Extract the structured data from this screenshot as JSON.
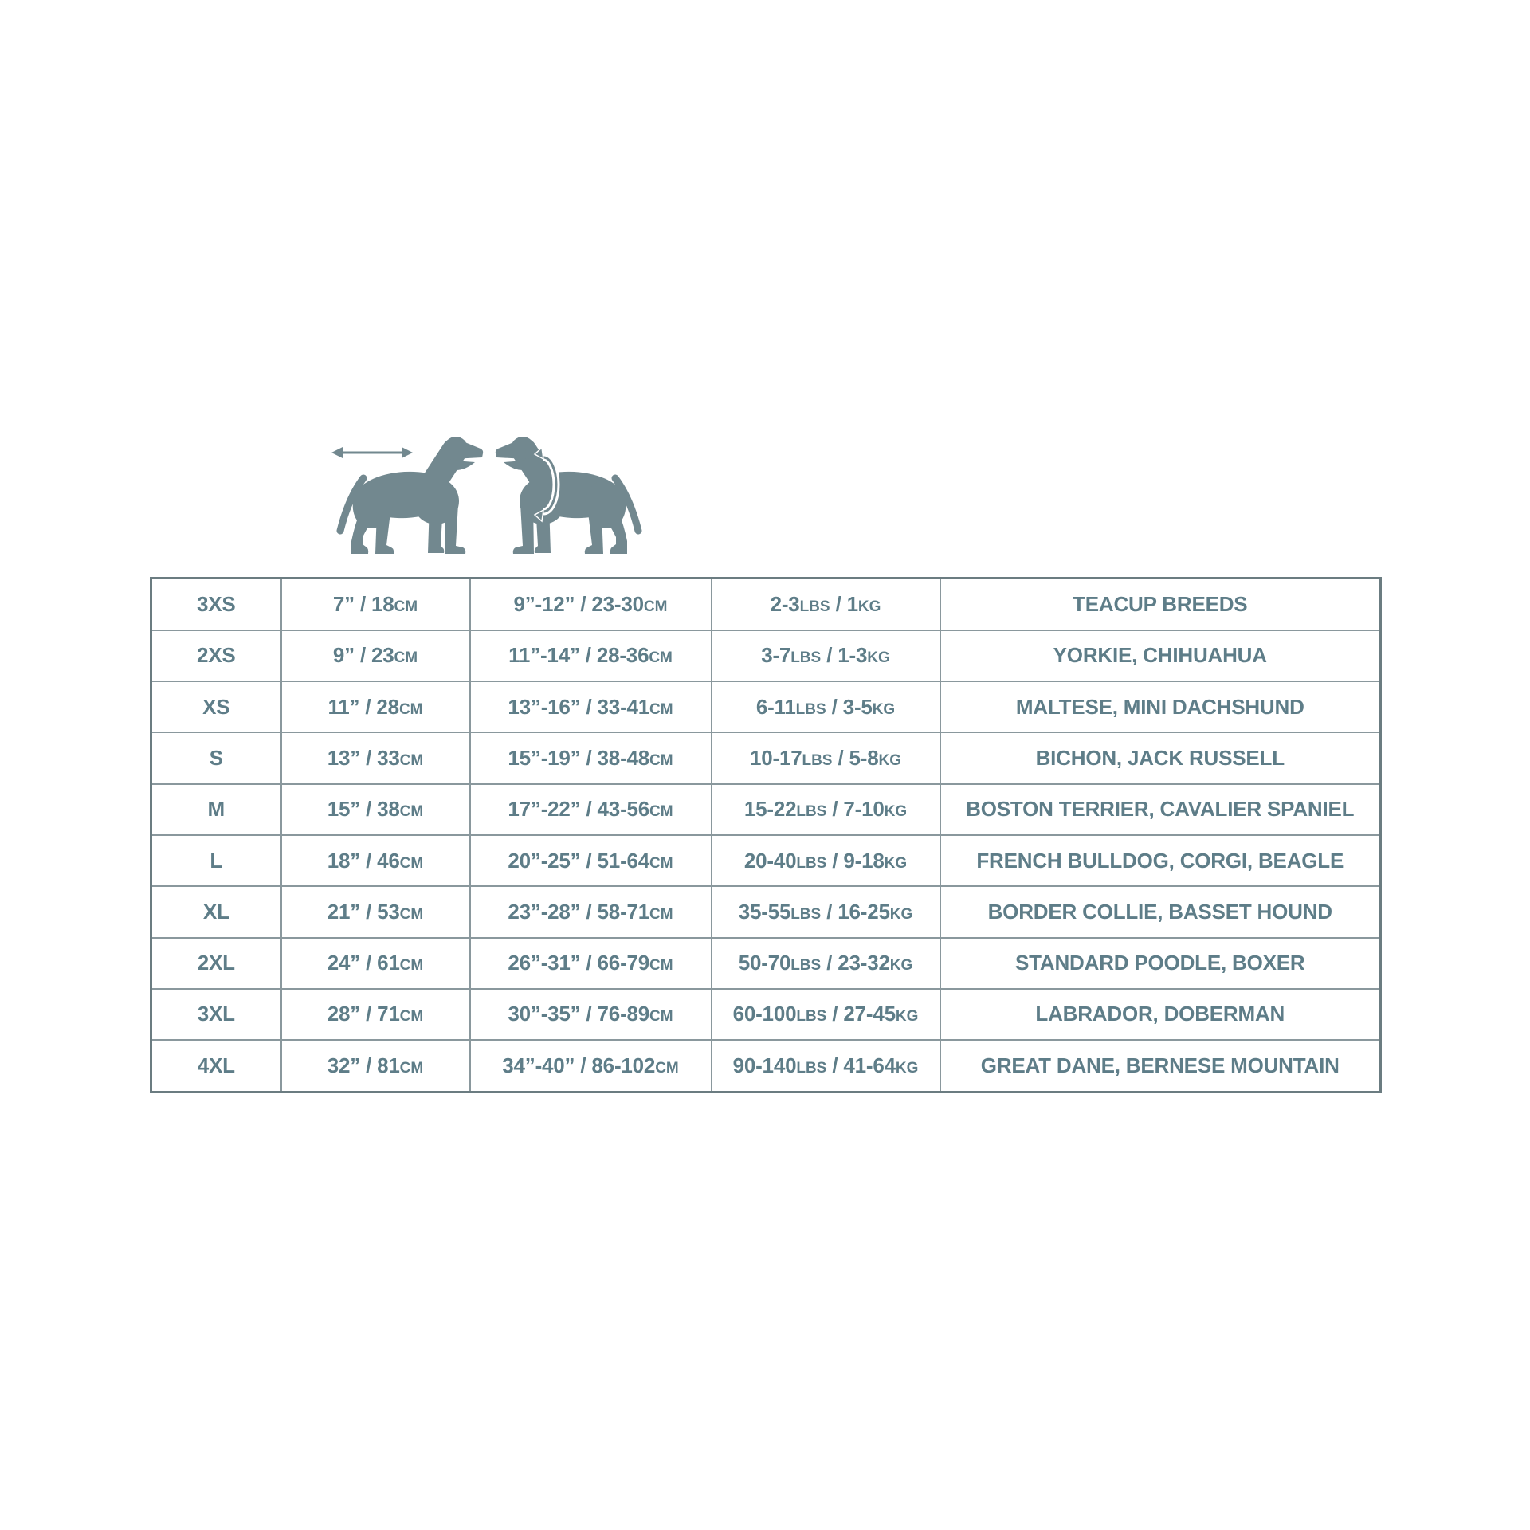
{
  "page": {
    "background": "#ffffff",
    "description": "Dog apparel size chart with two dog silhouette measurement icons above a 10-row sizing table"
  },
  "colors": {
    "dog_silhouette": "#72888f",
    "arrow": "#72888f",
    "text": "#5e7d88",
    "grid_line_inner": "#8a989d",
    "grid_line_outer": "#6b7c81"
  },
  "icons": [
    {
      "name": "dog-back-length-icon",
      "meaning": "dog side silhouette facing right with horizontal double-headed arrow showing back length"
    },
    {
      "name": "dog-chest-girth-icon",
      "meaning": "dog side silhouette facing left with curved wrap-around arrow showing chest girth"
    }
  ],
  "chart_data": {
    "type": "table",
    "columns": [
      "size",
      "back_length",
      "chest_girth",
      "weight",
      "breeds"
    ],
    "rows": [
      {
        "size": "3XS",
        "back_length": "7” / 18CM",
        "chest_girth": "9”-12” / 23-30CM",
        "weight": "2-3LBS / 1KG",
        "breeds": "TEACUP BREEDS"
      },
      {
        "size": "2XS",
        "back_length": "9” / 23CM",
        "chest_girth": "11”-14” / 28-36CM",
        "weight": "3-7LBS / 1-3KG",
        "breeds": "YORKIE, CHIHUAHUA"
      },
      {
        "size": "XS",
        "back_length": "11” / 28CM",
        "chest_girth": "13”-16” / 33-41CM",
        "weight": "6-11LBS / 3-5KG",
        "breeds": "MALTESE, MINI DACHSHUND"
      },
      {
        "size": "S",
        "back_length": "13” / 33CM",
        "chest_girth": "15”-19” / 38-48CM",
        "weight": "10-17LBS / 5-8KG",
        "breeds": "BICHON, JACK RUSSELL"
      },
      {
        "size": "M",
        "back_length": "15” / 38CM",
        "chest_girth": "17”-22” / 43-56CM",
        "weight": "15-22LBS / 7-10KG",
        "breeds": "BOSTON TERRIER, CAVALIER SPANIEL"
      },
      {
        "size": "L",
        "back_length": "18” / 46CM",
        "chest_girth": "20”-25” / 51-64CM",
        "weight": "20-40LBS / 9-18KG",
        "breeds": "FRENCH BULLDOG, CORGI, BEAGLE"
      },
      {
        "size": "XL",
        "back_length": "21” / 53CM",
        "chest_girth": "23”-28” / 58-71CM",
        "weight": "35-55LBS / 16-25KG",
        "breeds": "BORDER COLLIE, BASSET HOUND"
      },
      {
        "size": "2XL",
        "back_length": "24” / 61CM",
        "chest_girth": "26”-31” / 66-79CM",
        "weight": "50-70LBS / 23-32KG",
        "breeds": "STANDARD POODLE, BOXER"
      },
      {
        "size": "3XL",
        "back_length": "28” / 71CM",
        "chest_girth": "30”-35” / 76-89CM",
        "weight": "60-100LBS / 27-45KG",
        "breeds": "LABRADOR, DOBERMAN"
      },
      {
        "size": "4XL",
        "back_length": "32” / 81CM",
        "chest_girth": "34”-40” / 86-102CM",
        "weight": "90-140LBS / 41-64KG",
        "breeds": "GREAT DANE, BERNESE MOUNTAIN"
      }
    ]
  }
}
